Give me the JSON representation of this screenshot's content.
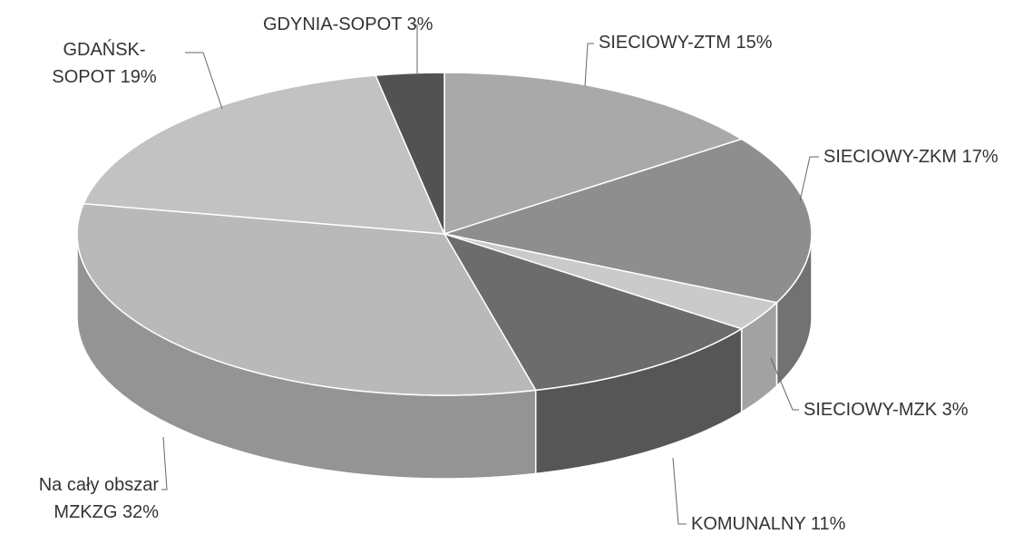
{
  "chart_data": {
    "type": "pie3d",
    "categories": [
      "SIECIOWY-ZTM",
      "SIECIOWY-ZKM",
      "SIECIOWY-MZK",
      "KOMUNALNY",
      "Na cały obszar MZKZG",
      "GDAŃSK-SOPOT",
      "GDYNIA-SOPOT"
    ],
    "values": [
      15,
      17,
      3,
      11,
      32,
      19,
      3
    ],
    "value_labels": [
      "15%",
      "17%",
      "3%",
      "11%",
      "32%",
      "19%",
      "3%"
    ],
    "colors": [
      "#a9a9a9",
      "#8e8e8e",
      "#cacaca",
      "#6c6c6c",
      "#b9b9b9",
      "#c2c2c2",
      "#525252"
    ]
  }
}
